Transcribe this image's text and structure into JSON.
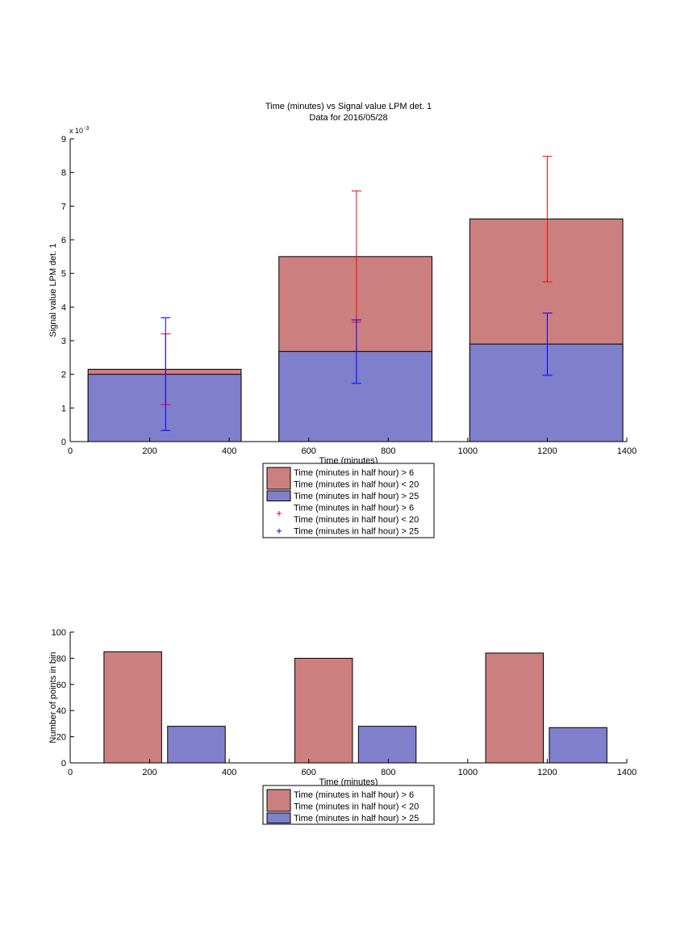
{
  "figure": {
    "title_line1": "Time (minutes) vs Signal value LPM det. 1",
    "title_line2": "Data for 2016/05/28"
  },
  "colors": {
    "red_fill": "#cc7f7f",
    "blue_fill": "#7f7fcc",
    "red_errorbar": "#ff0000",
    "blue_errorbar": "#0000ff"
  },
  "chart_data": [
    {
      "type": "bar",
      "stacked": true,
      "title": "Time (minutes) vs Signal value LPM det. 1\nData for 2016/05/28",
      "xlabel": "Time (minutes)",
      "ylabel": "Signal value LPM det. 1",
      "y_exponent_label": "x 10",
      "y_exponent_power": "-3",
      "xlim": [
        0,
        1400
      ],
      "ylim": [
        0,
        9
      ],
      "x_ticks": [
        "0",
        "200",
        "400",
        "600",
        "800",
        "1000",
        "1200",
        "1400"
      ],
      "y_ticks": [
        "0",
        "1",
        "2",
        "3",
        "4",
        "5",
        "6",
        "7",
        "8",
        "9"
      ],
      "grid": false,
      "legend_position": "below",
      "bins": [
        {
          "x_start": 45,
          "x_end": 430,
          "center": 240
        },
        {
          "x_start": 525,
          "x_end": 910,
          "center": 720
        },
        {
          "x_start": 1005,
          "x_end": 1390,
          "center": 1200
        }
      ],
      "series": [
        {
          "name": "Time (minutes in half hour) > 6\nTime (minutes in half hour) < 20",
          "kind": "bar",
          "color": "red",
          "values": [
            2.15,
            5.5,
            6.62
          ]
        },
        {
          "name": "Time (minutes in half hour) > 25",
          "kind": "bar",
          "color": "blue",
          "values": [
            2.0,
            2.68,
            2.9
          ]
        },
        {
          "name": "Time (minutes in half hour) > 6\nTime (minutes in half hour) < 20",
          "kind": "errorbar",
          "color": "red",
          "center": [
            2.15,
            5.5,
            6.62
          ],
          "lower": [
            1.1,
            3.55,
            4.75
          ],
          "upper": [
            3.2,
            7.45,
            8.48
          ]
        },
        {
          "name": "Time (minutes in half hour) > 25",
          "kind": "errorbar",
          "color": "blue",
          "center": [
            2.0,
            2.68,
            2.9
          ],
          "lower": [
            0.33,
            1.73,
            1.97
          ],
          "upper": [
            3.68,
            3.62,
            3.82
          ]
        }
      ],
      "legend": [
        {
          "marker": "red-patch",
          "lines": [
            "Time (minutes in half hour) > 6",
            "Time (minutes in half hour) < 20"
          ]
        },
        {
          "marker": "blue-patch",
          "lines": [
            "Time (minutes in half hour) > 25"
          ]
        },
        {
          "marker": "red-plus",
          "lines": [
            "Time (minutes in half hour) > 6",
            "Time (minutes in half hour) < 20"
          ]
        },
        {
          "marker": "blue-plus",
          "lines": [
            "Time (minutes in half hour) > 25"
          ]
        }
      ]
    },
    {
      "type": "bar",
      "stacked": false,
      "title": "",
      "xlabel": "Time (minutes)",
      "ylabel": "Number of points in bin",
      "xlim": [
        0,
        1400
      ],
      "ylim": [
        0,
        100
      ],
      "x_ticks": [
        "0",
        "200",
        "400",
        "600",
        "800",
        "1000",
        "1200",
        "1400"
      ],
      "y_ticks": [
        "0",
        "20",
        "40",
        "60",
        "80",
        "100"
      ],
      "grid": false,
      "legend_position": "below",
      "series": [
        {
          "name": "Time (minutes in half hour) > 6\nTime (minutes in half hour) < 20",
          "color": "red",
          "x_start": [
            85,
            565,
            1045
          ],
          "x_end": [
            230,
            710,
            1190
          ],
          "values": [
            85,
            80,
            84
          ]
        },
        {
          "name": "Time (minutes in half hour) > 25",
          "color": "blue",
          "x_start": [
            245,
            725,
            1205
          ],
          "x_end": [
            390,
            870,
            1350
          ],
          "values": [
            28,
            28,
            27
          ]
        }
      ],
      "legend": [
        {
          "marker": "red-patch",
          "lines": [
            "Time (minutes in half hour) > 6",
            "Time (minutes in half hour) < 20"
          ]
        },
        {
          "marker": "blue-patch",
          "lines": [
            "Time (minutes in half hour) > 25"
          ]
        }
      ]
    }
  ]
}
